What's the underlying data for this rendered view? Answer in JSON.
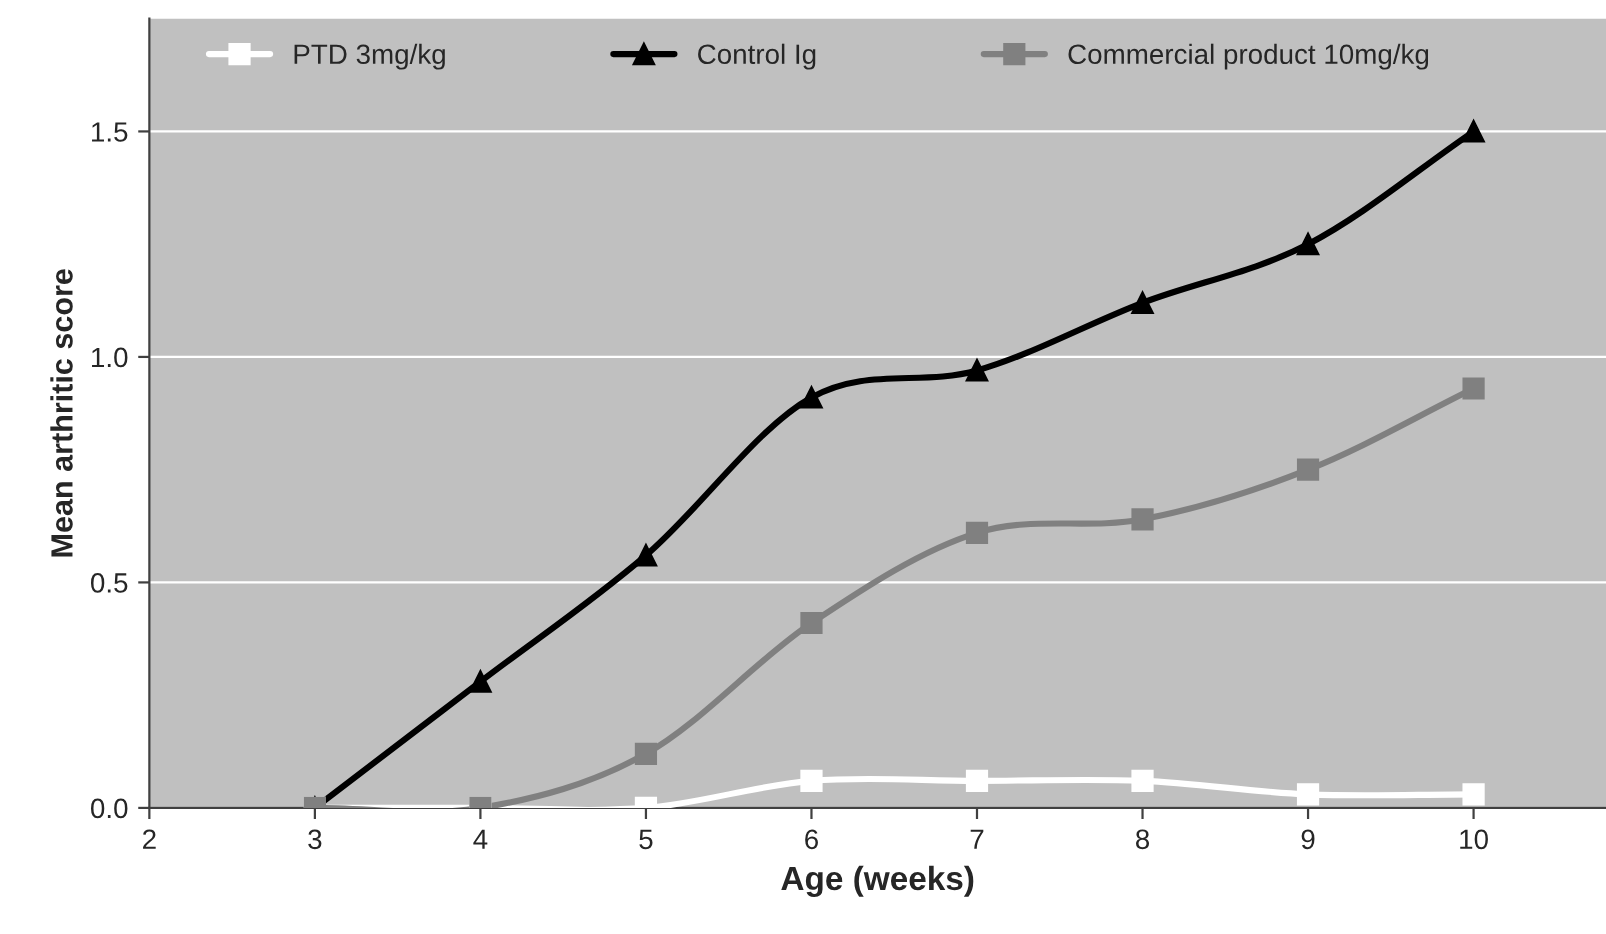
{
  "chart_data": {
    "type": "line",
    "xlabel": "Age (weeks)",
    "ylabel": "Mean arthritic score",
    "x": [
      3,
      4,
      5,
      6,
      7,
      8,
      9,
      10
    ],
    "xlim": [
      2,
      10.8
    ],
    "xticks": [
      2,
      3,
      4,
      5,
      6,
      7,
      8,
      9,
      10
    ],
    "ylim": [
      0,
      1.75
    ],
    "yticks": [
      {
        "value": 0,
        "label": "0.0"
      },
      {
        "value": 0.5,
        "label": "0.5"
      },
      {
        "value": 1,
        "label": "1.0"
      },
      {
        "value": 1.5,
        "label": "1.5"
      }
    ],
    "grid": "y",
    "legend": "top",
    "line_style": "solid",
    "series": [
      {
        "name": "PTD 3mg/kg",
        "color": "#ffffff",
        "marker": "square",
        "values": [
          0,
          0,
          0,
          0.06,
          0.06,
          0.06,
          0.03,
          0.03
        ]
      },
      {
        "name": "Control Ig",
        "color": "#000000",
        "marker": "triangle",
        "values": [
          0,
          0.28,
          0.56,
          0.91,
          0.97,
          1.12,
          1.25,
          1.5
        ]
      },
      {
        "name": "Commercial product 10mg/kg",
        "color": "#808080",
        "marker": "square",
        "values": [
          0,
          0,
          0.12,
          0.41,
          0.61,
          0.64,
          0.75,
          0.93
        ]
      }
    ]
  }
}
